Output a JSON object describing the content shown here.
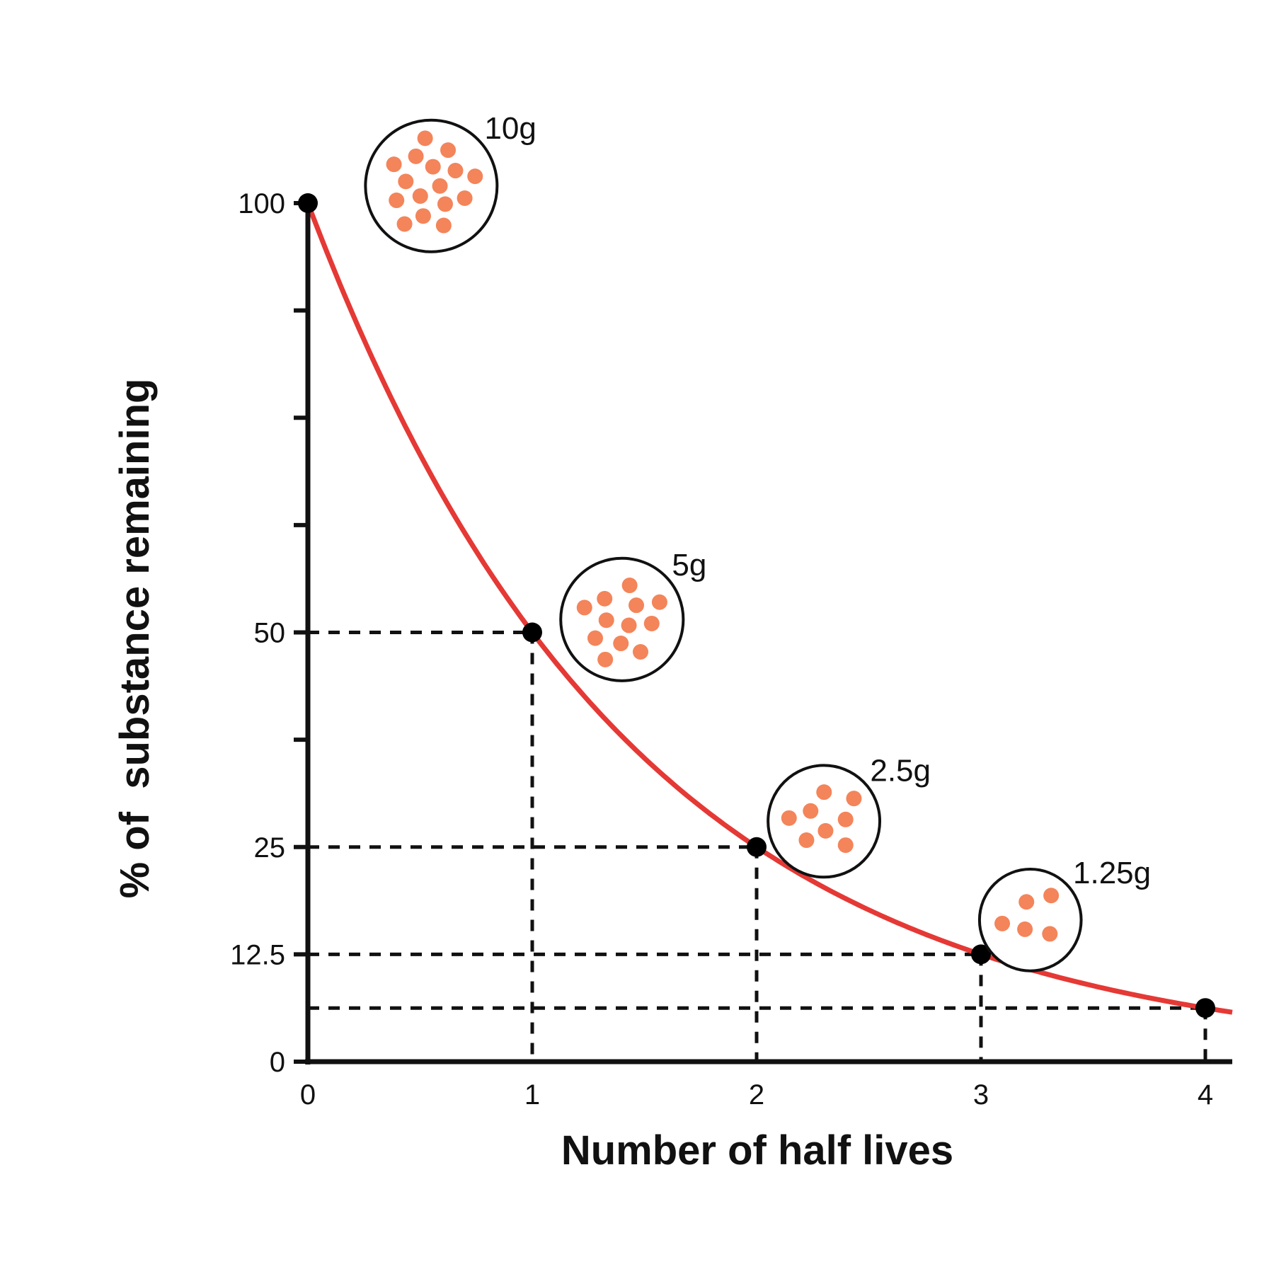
{
  "chart_data": {
    "type": "line",
    "title": "",
    "xlabel": "Number of half lives",
    "ylabel": "% of  substance remaining",
    "xlim": [
      0,
      4.12
    ],
    "ylim": [
      0,
      100
    ],
    "x_ticks": [
      "0",
      "1",
      "2",
      "3",
      "4"
    ],
    "y_ticks": [
      {
        "value": 0,
        "label": "0"
      },
      {
        "value": 12.5,
        "label": "12.5"
      },
      {
        "value": 25,
        "label": "25"
      },
      {
        "value": 37.5,
        "label": ""
      },
      {
        "value": 50,
        "label": "50"
      },
      {
        "value": 62.5,
        "label": ""
      },
      {
        "value": 75,
        "label": ""
      },
      {
        "value": 87.5,
        "label": ""
      },
      {
        "value": 100,
        "label": "100"
      }
    ],
    "points": [
      {
        "x": 0,
        "y": 100
      },
      {
        "x": 1,
        "y": 50
      },
      {
        "x": 2,
        "y": 25
      },
      {
        "x": 3,
        "y": 12.5
      },
      {
        "x": 4,
        "y": 6.25
      }
    ],
    "grid": false,
    "legend": "none",
    "curve_color": "#e53935",
    "particle_color": "#f4845a",
    "samples": [
      {
        "x": 0.55,
        "y": 102,
        "label": "10g",
        "particles": 16
      },
      {
        "x": 1.4,
        "y": 51.5,
        "label": "5g",
        "particles": 12
      },
      {
        "x": 2.3,
        "y": 28,
        "label": "2.5g",
        "particles": 8
      },
      {
        "x": 3.22,
        "y": 16.5,
        "label": "1.25g",
        "particles": 5
      }
    ]
  }
}
